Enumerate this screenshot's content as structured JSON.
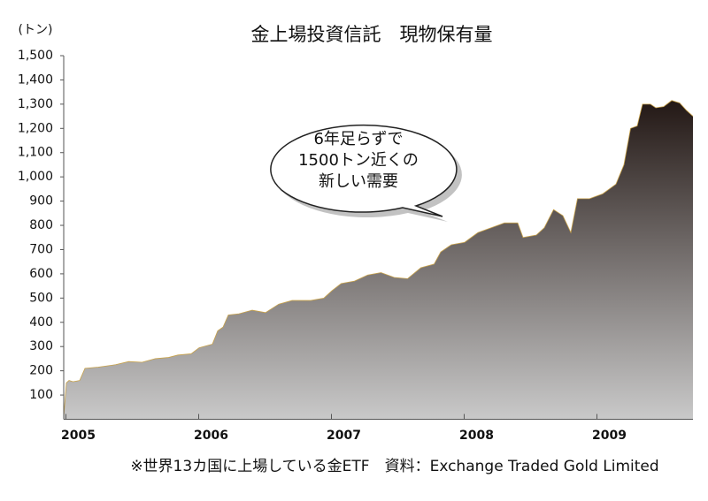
{
  "chart_data": {
    "type": "area",
    "title": "金上場投資信託　現物保有量",
    "y_label": "(トン)",
    "note": "※世界13カ国に上場している金ETF　資料：Exchange Traded Gold Limited",
    "annotation": [
      "6年足らずで",
      "1500トン近くの",
      "新しい需要"
    ],
    "color": "#231815",
    "x": [
      2004.89,
      2004.91,
      2004.93,
      2004.96,
      2005.01,
      2005.05,
      2005.15,
      2005.28,
      2005.38,
      2005.48,
      2005.58,
      2005.68,
      2005.75,
      2005.85,
      2005.91,
      2006.01,
      2006.05,
      2006.09,
      2006.13,
      2006.21,
      2006.31,
      2006.41,
      2006.51,
      2006.61,
      2006.75,
      2006.85,
      2006.91,
      2006.98,
      2007.08,
      2007.18,
      2007.28,
      2007.38,
      2007.48,
      2007.58,
      2007.68,
      2007.73,
      2007.81,
      2007.91,
      2008.01,
      2008.11,
      2008.21,
      2008.31,
      2008.35,
      2008.45,
      2008.51,
      2008.58,
      2008.65,
      2008.71,
      2008.76,
      2008.85,
      2008.95,
      2009.05,
      2009.11,
      2009.16,
      2009.21,
      2009.25,
      2009.31,
      2009.35,
      2009.41,
      2009.47,
      2009.53,
      2009.58,
      2009.63
    ],
    "values": [
      10,
      150,
      160,
      155,
      160,
      210,
      215,
      225,
      238,
      235,
      250,
      255,
      265,
      270,
      295,
      310,
      365,
      380,
      430,
      435,
      450,
      440,
      475,
      490,
      490,
      500,
      530,
      560,
      570,
      595,
      605,
      585,
      580,
      625,
      640,
      690,
      720,
      730,
      770,
      790,
      810,
      810,
      750,
      760,
      790,
      865,
      840,
      770,
      910,
      910,
      930,
      970,
      1050,
      1200,
      1210,
      1300,
      1300,
      1285,
      1290,
      1315,
      1305,
      1275,
      1250
    ],
    "xlim": [
      2004.89,
      2009.63
    ],
    "xticks": [
      2005,
      2006,
      2007,
      2008,
      2009
    ],
    "ylim": [
      0,
      1500
    ],
    "yticks": [
      100,
      200,
      300,
      400,
      500,
      600,
      700,
      800,
      900,
      {
        "value": 1000,
        "label": "1,000"
      },
      {
        "value": 1100,
        "label": "1,100"
      },
      {
        "value": 1200,
        "label": "1,200"
      },
      {
        "value": 1300,
        "label": "1,300"
      },
      {
        "value": 1400,
        "label": "1,400"
      },
      {
        "value": 1500,
        "label": "1,500"
      }
    ]
  }
}
